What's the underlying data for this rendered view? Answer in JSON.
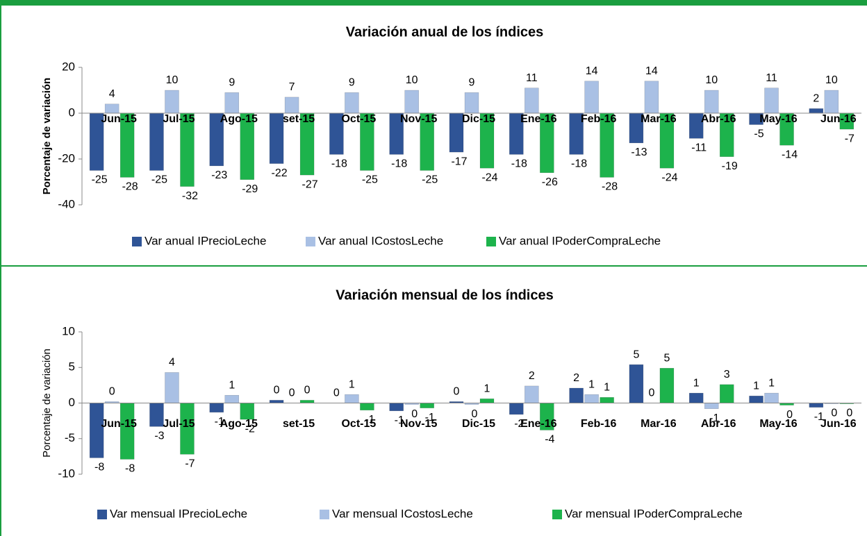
{
  "chart_data": [
    {
      "type": "bar",
      "title": "Variación anual de los índices",
      "y_label": "Porcentaje de variación",
      "categories": [
        "Jun-15",
        "Jul-15",
        "Ago-15",
        "set-15",
        "Oct-15",
        "Nov-15",
        "Dic-15",
        "Ene-16",
        "Feb-16",
        "Mar-16",
        "Abr-16",
        "May-16",
        "Jun-16"
      ],
      "series": [
        {
          "name": "Var anual IPrecioLeche",
          "color": "#2f5496",
          "values": [
            -25,
            -25,
            -23,
            -22,
            -18,
            -18,
            -17,
            -18,
            -18,
            -13,
            -11,
            -5,
            2
          ]
        },
        {
          "name": "Var anual ICostosLeche",
          "color": "#a9c0e4",
          "values": [
            4,
            10,
            9,
            7,
            9,
            10,
            9,
            11,
            14,
            14,
            10,
            11,
            10
          ]
        },
        {
          "name": "Var anual IPoderCompraLeche",
          "color": "#1db34c",
          "values": [
            -28,
            -32,
            -29,
            -27,
            -25,
            -25,
            -24,
            -26,
            -28,
            -24,
            -19,
            -14,
            -7
          ]
        }
      ],
      "ylim": [
        -40,
        20
      ],
      "yticks": [
        -40,
        -20,
        0,
        20
      ],
      "legend": "bottom"
    },
    {
      "type": "bar",
      "title": "Variación mensual de los índices",
      "y_label": "Porcentaje de variación",
      "categories": [
        "Jun-15",
        "Jul-15",
        "Ago-15",
        "set-15",
        "Oct-15",
        "Nov-15",
        "Dic-15",
        "Ene-16",
        "Feb-16",
        "Mar-16",
        "Abr-16",
        "May-16",
        "Jun-16"
      ],
      "series": [
        {
          "name": "Var mensual IPrecioLeche",
          "color": "#2f5496",
          "values": [
            -7.7,
            -3.3,
            -1.3,
            0.4,
            0.0,
            -1.1,
            0.2,
            -1.6,
            2.1,
            5.4,
            1.4,
            1.0,
            -0.6
          ],
          "value_labels": [
            "-8",
            "-3",
            "-1",
            "0",
            "0",
            "-1",
            "0",
            "-2",
            "2",
            "5",
            "1",
            "1",
            "-1"
          ]
        },
        {
          "name": "Var mensual ICostosLeche",
          "color": "#a9c0e4",
          "values": [
            0.2,
            4.3,
            1.1,
            0.0,
            1.2,
            -0.2,
            -0.2,
            2.4,
            1.2,
            0.0,
            -0.8,
            1.4,
            -0.1
          ],
          "value_labels": [
            "0",
            "4",
            "1",
            "0",
            "1",
            "0",
            "0",
            "2",
            "1",
            "0",
            "-1",
            "1",
            "0"
          ]
        },
        {
          "name": "Var mensual IPoderCompraLeche",
          "color": "#1db34c",
          "values": [
            -7.9,
            -7.2,
            -2.3,
            0.4,
            -1.0,
            -0.7,
            0.6,
            -3.8,
            0.8,
            4.9,
            2.6,
            -0.3,
            -0.1
          ],
          "value_labels": [
            "-8",
            "-7",
            "-2",
            "0",
            "-1",
            "-1",
            "1",
            "-4",
            "1",
            "5",
            "3",
            "0",
            "0"
          ]
        }
      ],
      "ylim": [
        -10,
        10
      ],
      "yticks": [
        -10,
        -5,
        0,
        5,
        10
      ],
      "legend": "bottom"
    }
  ]
}
